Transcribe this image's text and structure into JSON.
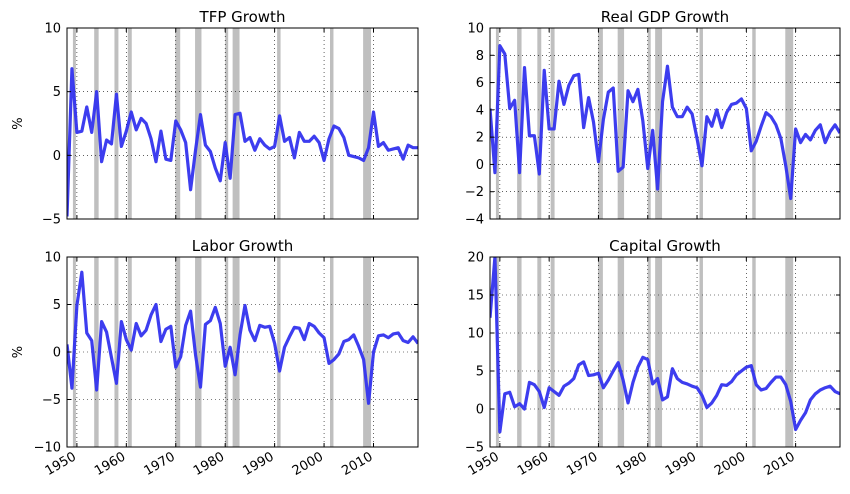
{
  "figure": {
    "line_color": "#3333ee",
    "recession_color": "#bfbfbf",
    "recession_bands": [
      [
        1949.2,
        1949.8
      ],
      [
        1953.5,
        1954.4
      ],
      [
        1957.6,
        1958.4
      ],
      [
        1960.3,
        1961.1
      ],
      [
        1969.9,
        1970.9
      ],
      [
        1973.9,
        1975.2
      ],
      [
        1980.0,
        1980.6
      ],
      [
        1981.5,
        1982.9
      ],
      [
        1990.5,
        1991.2
      ],
      [
        2001.2,
        2001.9
      ],
      [
        2007.9,
        2009.5
      ]
    ]
  },
  "chart_data": [
    {
      "type": "line",
      "title": "TFP Growth",
      "ylabel": "%",
      "xlabel": "",
      "xlim": [
        1948,
        2019
      ],
      "ylim": [
        -5,
        10
      ],
      "yticks": [
        -5,
        0,
        5,
        10
      ],
      "xticks": [],
      "grid": true,
      "legend": "none",
      "x": [
        1948,
        1949,
        1950,
        1951,
        1952,
        1953,
        1954,
        1955,
        1956,
        1957,
        1958,
        1959,
        1960,
        1961,
        1962,
        1963,
        1964,
        1965,
        1966,
        1967,
        1968,
        1969,
        1970,
        1971,
        1972,
        1973,
        1974,
        1975,
        1976,
        1977,
        1978,
        1979,
        1980,
        1981,
        1982,
        1983,
        1984,
        1985,
        1986,
        1987,
        1988,
        1989,
        1990,
        1991,
        1992,
        1993,
        1994,
        1995,
        1996,
        1997,
        1998,
        1999,
        2000,
        2001,
        2002,
        2003,
        2004,
        2005,
        2006,
        2007,
        2008,
        2009,
        2010,
        2011,
        2012,
        2013,
        2014,
        2015,
        2016,
        2017,
        2018,
        2019
      ],
      "series": [
        {
          "values": [
            -4.8,
            6.8,
            1.8,
            1.9,
            3.8,
            1.8,
            5.0,
            -0.5,
            1.2,
            0.9,
            4.8,
            0.7,
            1.9,
            3.4,
            2.0,
            2.9,
            2.5,
            1.3,
            -0.5,
            1.9,
            -0.3,
            -0.4,
            2.7,
            2.0,
            1.0,
            -2.7,
            0.4,
            3.2,
            0.8,
            0.3,
            -1.0,
            -2.0,
            1.0,
            -1.8,
            3.2,
            3.3,
            1.1,
            1.4,
            0.4,
            1.3,
            0.8,
            0.5,
            0.7,
            3.1,
            1.1,
            1.4,
            -0.2,
            1.8,
            1.1,
            1.1,
            1.5,
            1.0,
            -0.4,
            1.3,
            2.3,
            2.1,
            1.4,
            0.0,
            -0.1,
            -0.2,
            -0.4,
            0.6,
            3.4,
            0.7,
            1.0,
            0.4,
            0.5,
            0.6,
            -0.3,
            0.8,
            0.6,
            0.6
          ]
        }
      ]
    },
    {
      "type": "line",
      "title": "Real GDP Growth",
      "ylabel": "",
      "xlabel": "",
      "xlim": [
        1948,
        2019
      ],
      "ylim": [
        -4,
        10
      ],
      "yticks": [
        -4,
        -2,
        0,
        2,
        4,
        6,
        8,
        10
      ],
      "xticks": [],
      "grid": true,
      "legend": "none",
      "x": [
        1948,
        1949,
        1950,
        1951,
        1952,
        1953,
        1954,
        1955,
        1956,
        1957,
        1958,
        1959,
        1960,
        1961,
        1962,
        1963,
        1964,
        1965,
        1966,
        1967,
        1968,
        1969,
        1970,
        1971,
        1972,
        1973,
        1974,
        1975,
        1976,
        1977,
        1978,
        1979,
        1980,
        1981,
        1982,
        1983,
        1984,
        1985,
        1986,
        1987,
        1988,
        1989,
        1990,
        1991,
        1992,
        1993,
        1994,
        1995,
        1996,
        1997,
        1998,
        1999,
        2000,
        2001,
        2002,
        2003,
        2004,
        2005,
        2006,
        2007,
        2008,
        2009,
        2010,
        2011,
        2012,
        2013,
        2014,
        2015,
        2016,
        2017,
        2018,
        2019
      ],
      "series": [
        {
          "values": [
            4.1,
            -0.6,
            8.7,
            8.1,
            4.1,
            4.7,
            -0.6,
            7.1,
            2.1,
            2.1,
            -0.7,
            6.9,
            2.6,
            2.6,
            6.1,
            4.4,
            5.8,
            6.5,
            6.6,
            2.7,
            4.9,
            3.1,
            0.2,
            3.3,
            5.3,
            5.6,
            -0.5,
            -0.2,
            5.4,
            4.6,
            5.5,
            3.2,
            -0.3,
            2.5,
            -1.8,
            4.6,
            7.2,
            4.2,
            3.5,
            3.5,
            4.2,
            3.7,
            1.9,
            -0.1,
            3.5,
            2.8,
            4.0,
            2.7,
            3.8,
            4.4,
            4.5,
            4.8,
            4.1,
            1.0,
            1.7,
            2.8,
            3.8,
            3.5,
            2.9,
            1.9,
            -0.1,
            -2.5,
            2.6,
            1.6,
            2.2,
            1.8,
            2.5,
            2.9,
            1.6,
            2.4,
            2.9,
            2.3
          ]
        }
      ]
    },
    {
      "type": "line",
      "title": "Labor Growth",
      "ylabel": "%",
      "xlabel": "",
      "xlim": [
        1948,
        2019
      ],
      "ylim": [
        -10,
        10
      ],
      "yticks": [
        -10,
        -5,
        0,
        5,
        10
      ],
      "xticks": [
        1950,
        1960,
        1970,
        1980,
        1990,
        2000,
        2010
      ],
      "grid": true,
      "legend": "none",
      "x": [
        1948,
        1949,
        1950,
        1951,
        1952,
        1953,
        1954,
        1955,
        1956,
        1957,
        1958,
        1959,
        1960,
        1961,
        1962,
        1963,
        1964,
        1965,
        1966,
        1967,
        1968,
        1969,
        1970,
        1971,
        1972,
        1973,
        1974,
        1975,
        1976,
        1977,
        1978,
        1979,
        1980,
        1981,
        1982,
        1983,
        1984,
        1985,
        1986,
        1987,
        1988,
        1989,
        1990,
        1991,
        1992,
        1993,
        1994,
        1995,
        1996,
        1997,
        1998,
        1999,
        2000,
        2001,
        2002,
        2003,
        2004,
        2005,
        2006,
        2007,
        2008,
        2009,
        2010,
        2011,
        2012,
        2013,
        2014,
        2015,
        2016,
        2017,
        2018,
        2019
      ],
      "series": [
        {
          "values": [
            0.8,
            -3.8,
            4.9,
            8.4,
            2.0,
            1.2,
            -4.0,
            3.2,
            2.1,
            -0.6,
            -3.3,
            3.2,
            1.3,
            0.2,
            3.0,
            1.7,
            2.3,
            3.9,
            5.0,
            1.1,
            2.4,
            2.7,
            -1.6,
            -0.5,
            2.8,
            4.3,
            -0.3,
            -3.7,
            2.9,
            3.3,
            4.7,
            3.0,
            -1.5,
            0.5,
            -2.4,
            1.8,
            4.9,
            2.3,
            1.2,
            2.8,
            2.6,
            2.7,
            0.9,
            -2.0,
            0.5,
            1.6,
            2.6,
            2.5,
            1.3,
            3.0,
            2.7,
            2.0,
            1.5,
            -1.2,
            -0.8,
            -0.2,
            1.1,
            1.3,
            1.8,
            0.6,
            -0.8,
            -5.4,
            0.0,
            1.7,
            1.8,
            1.5,
            1.9,
            2.0,
            1.2,
            1.0,
            1.6,
            0.9
          ]
        }
      ]
    },
    {
      "type": "line",
      "title": "Capital Growth",
      "ylabel": "",
      "xlabel": "",
      "xlim": [
        1948,
        2019
      ],
      "ylim": [
        -5,
        20
      ],
      "yticks": [
        -5,
        0,
        5,
        10,
        15,
        20
      ],
      "xticks": [
        1950,
        1960,
        1970,
        1980,
        1990,
        2000,
        2010
      ],
      "grid": true,
      "legend": "none",
      "x": [
        1948,
        1949,
        1950,
        1951,
        1952,
        1953,
        1954,
        1955,
        1956,
        1957,
        1958,
        1959,
        1960,
        1961,
        1962,
        1963,
        1964,
        1965,
        1966,
        1967,
        1968,
        1969,
        1970,
        1971,
        1972,
        1973,
        1974,
        1975,
        1976,
        1977,
        1978,
        1979,
        1980,
        1981,
        1982,
        1983,
        1984,
        1985,
        1986,
        1987,
        1988,
        1989,
        1990,
        1991,
        1992,
        1993,
        1994,
        1995,
        1996,
        1997,
        1998,
        1999,
        2000,
        2001,
        2002,
        2003,
        2004,
        2005,
        2006,
        2007,
        2008,
        2009,
        2010,
        2011,
        2012,
        2013,
        2014,
        2015,
        2016,
        2017,
        2018,
        2019
      ],
      "series": [
        {
          "values": [
            12.0,
            20.0,
            -3.0,
            2.0,
            2.2,
            0.3,
            0.7,
            0.0,
            3.5,
            3.2,
            2.3,
            0.2,
            2.8,
            2.3,
            1.8,
            3.0,
            3.4,
            4.0,
            5.8,
            6.2,
            4.4,
            4.5,
            4.7,
            2.8,
            3.8,
            5.0,
            6.1,
            3.8,
            0.8,
            3.5,
            5.5,
            6.8,
            6.5,
            3.3,
            4.0,
            1.2,
            1.6,
            5.3,
            4.0,
            3.5,
            3.3,
            3.0,
            2.8,
            1.8,
            0.2,
            0.8,
            1.8,
            3.2,
            3.1,
            3.6,
            4.5,
            5.0,
            5.5,
            5.7,
            3.2,
            2.5,
            2.7,
            3.5,
            4.2,
            4.2,
            3.2,
            1.0,
            -2.7,
            -1.5,
            -0.5,
            1.2,
            2.0,
            2.5,
            2.8,
            3.0,
            2.3,
            2.0
          ]
        }
      ]
    }
  ]
}
